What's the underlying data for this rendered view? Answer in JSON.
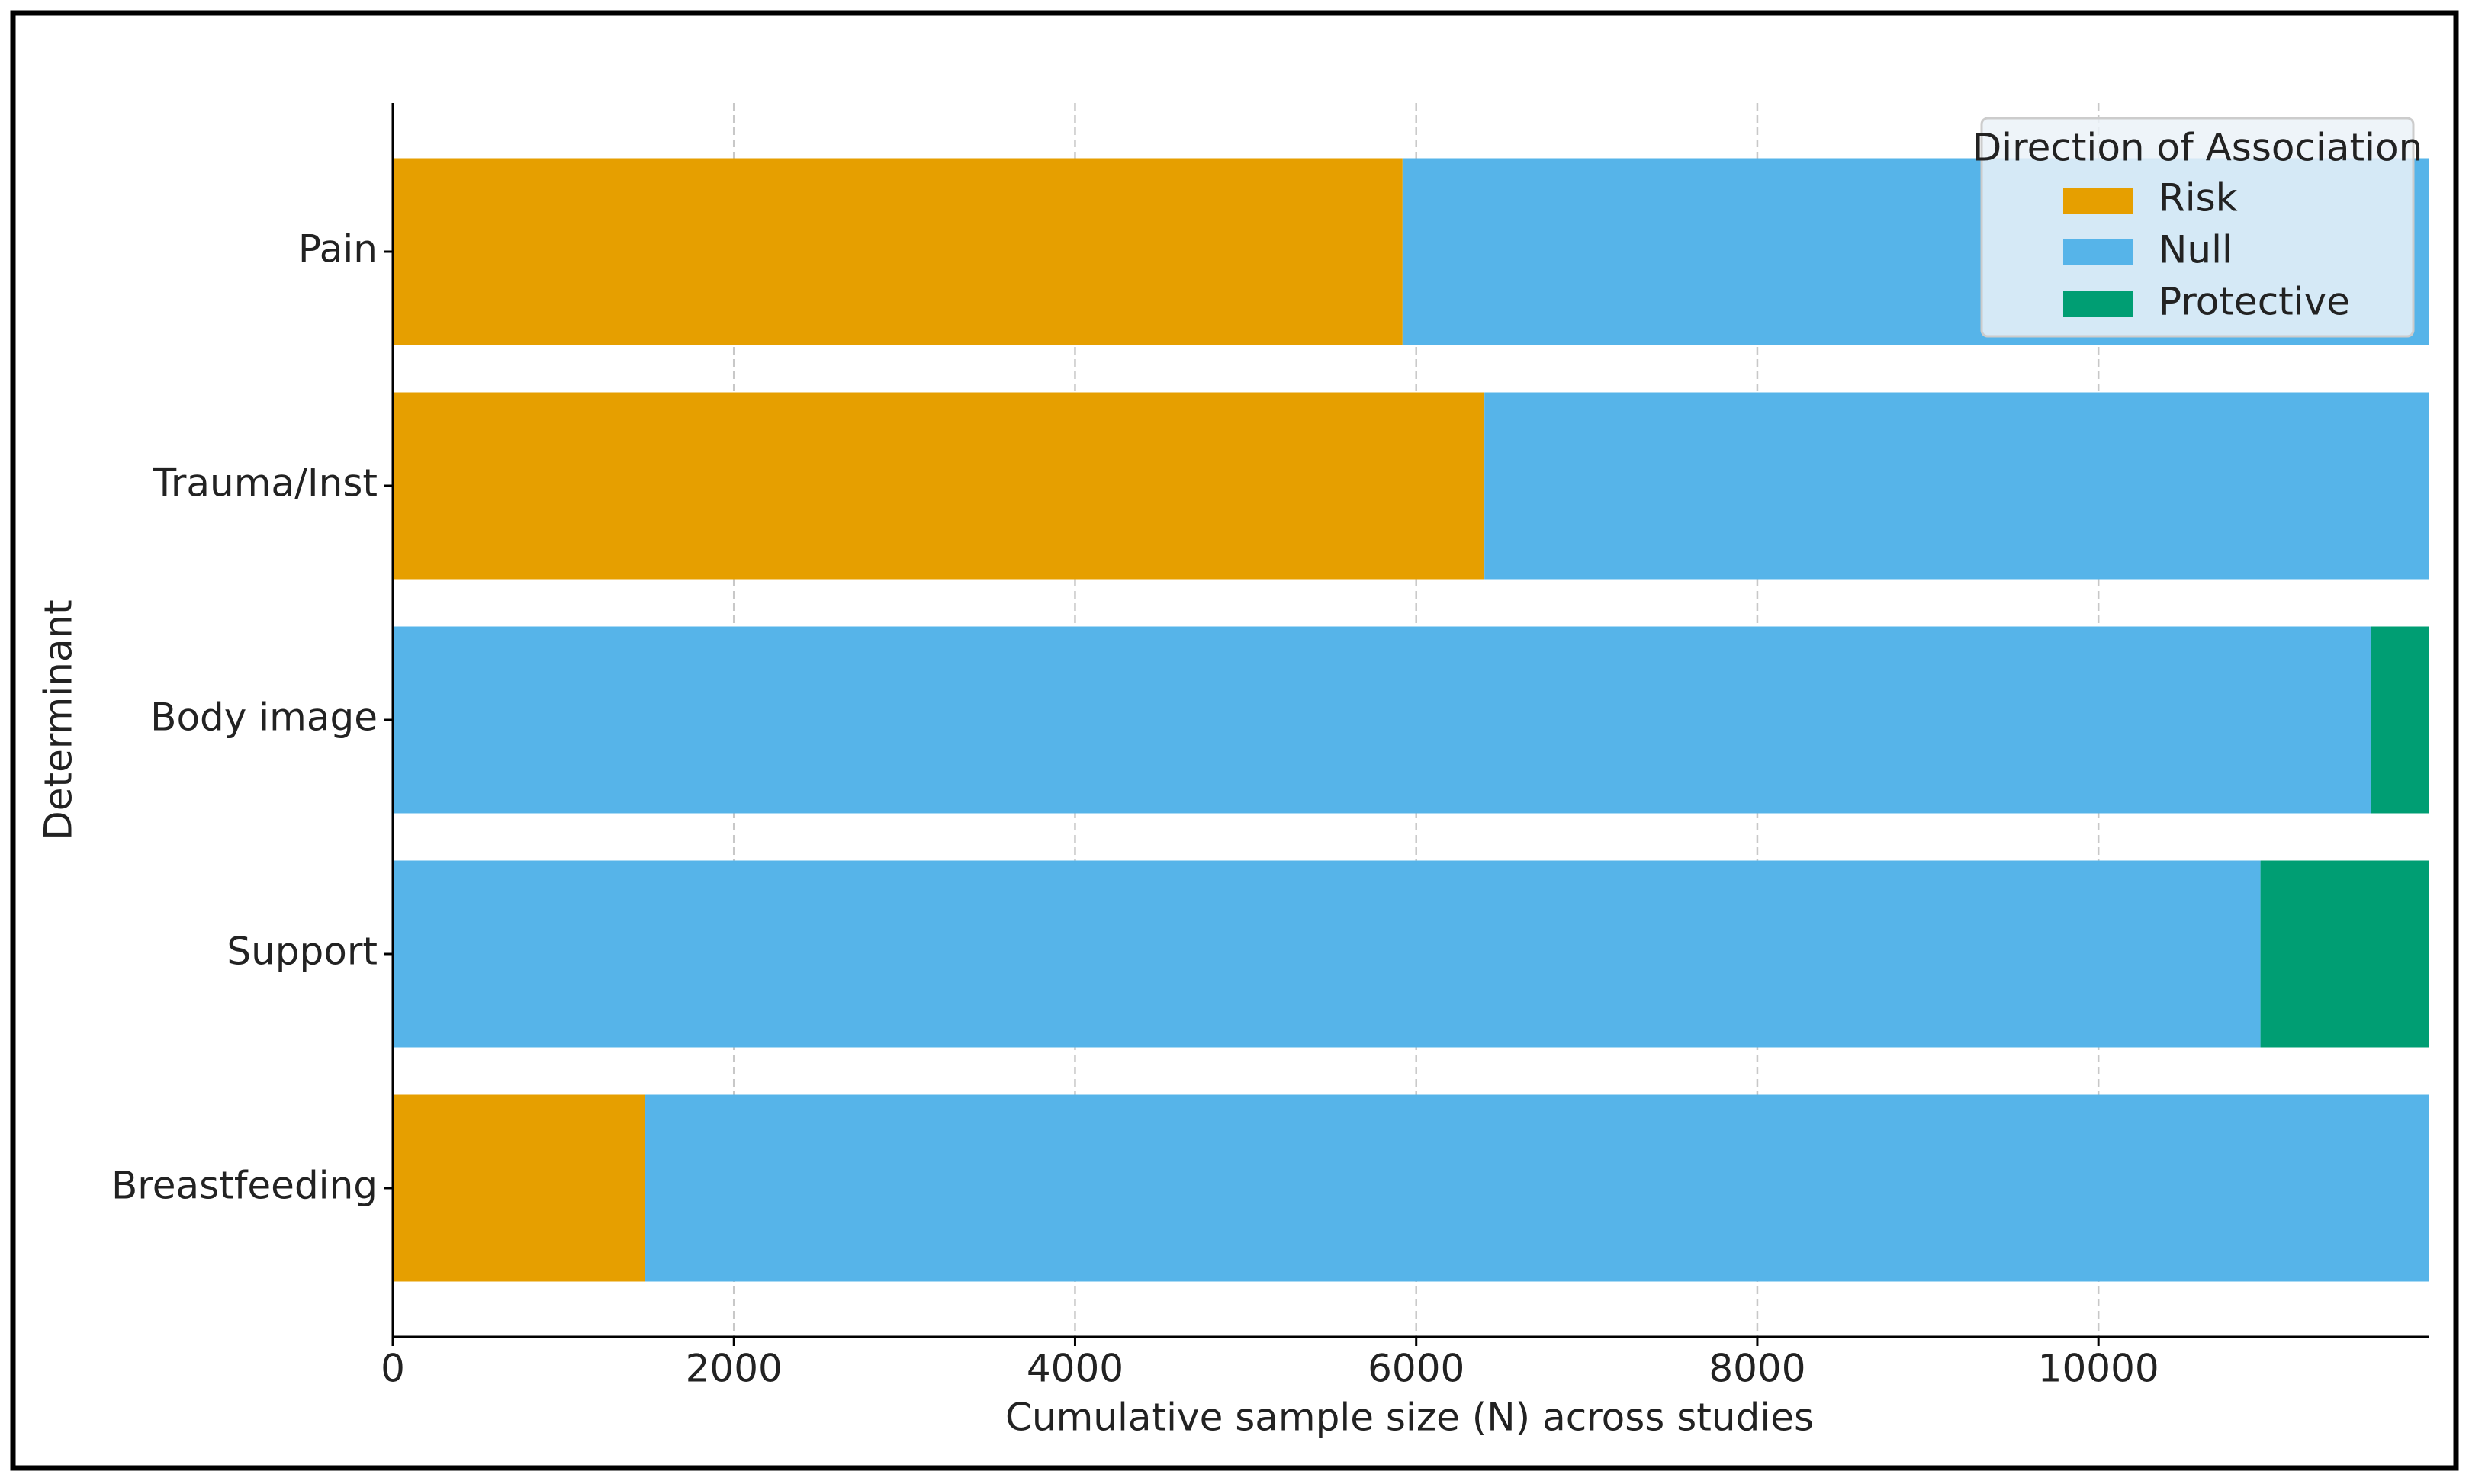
{
  "chart_data": {
    "type": "stacked-barh",
    "xlabel": "Cumulative sample size (N) across studies",
    "ylabel": "Determinant",
    "categories": [
      "Pain",
      "Trauma/Inst",
      "Body image",
      "Support",
      "Breastfeeding"
    ],
    "series": [
      {
        "name": "Risk",
        "color": "#E69F00",
        "values": [
          5920,
          6400,
          null,
          null,
          1480
        ]
      },
      {
        "name": "Null",
        "color": "#56B4E9",
        "values": [
          6020,
          5540,
          11600,
          10950,
          10460
        ]
      },
      {
        "name": "Protective",
        "color": "#009E73",
        "values": [
          null,
          null,
          340,
          990,
          null
        ]
      }
    ],
    "xlim": [
      0,
      11940
    ],
    "xticks": [
      0,
      2000,
      4000,
      6000,
      8000,
      10000
    ],
    "grid": true,
    "legend_title": "Direction of Association",
    "legend_position": "upper right"
  }
}
